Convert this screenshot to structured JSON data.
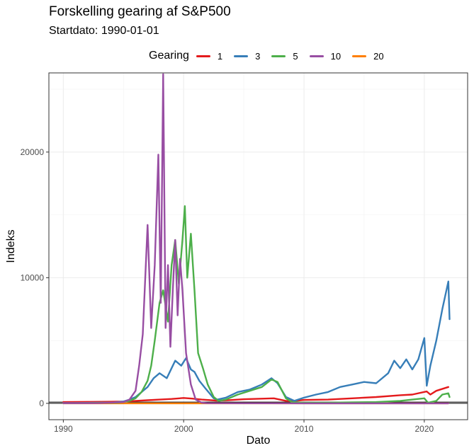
{
  "chart_data": {
    "type": "line",
    "title": "Forskelling gearing af S&P500",
    "subtitle": "Startdato: 1990-01-01",
    "xlabel": "Dato",
    "ylabel": "Indeks",
    "legend_title": "Gearing",
    "legend_position": "top",
    "grid": true,
    "xlim": [
      1988.8,
      2023.6
    ],
    "ylim": [
      -1300,
      26300
    ],
    "xticks": [
      1990,
      2000,
      2010,
      2020
    ],
    "yticks": [
      0,
      10000,
      20000
    ],
    "hlines": [
      0,
      100
    ],
    "series": [
      {
        "name": "1",
        "color": "#E41A1C",
        "x": [
          1990,
          1992,
          1994,
          1995,
          1996,
          1997,
          1998,
          1999,
          2000,
          2000.7,
          2001.5,
          2002.7,
          2003.5,
          2005,
          2007.5,
          2008.5,
          2009.2,
          2010,
          2012,
          2014,
          2016,
          2018,
          2019,
          2020.2,
          2020.5,
          2021,
          2022
        ],
        "values": [
          100,
          120,
          130,
          150,
          200,
          250,
          300,
          350,
          430,
          380,
          300,
          220,
          240,
          330,
          400,
          200,
          190,
          270,
          300,
          400,
          500,
          650,
          700,
          950,
          700,
          1000,
          1300
        ]
      },
      {
        "name": "3",
        "color": "#377EB8",
        "x": [
          1990,
          1991,
          1992,
          1993,
          1994,
          1995,
          1995.5,
          1996,
          1996.5,
          1997,
          1997.5,
          1998,
          1998.6,
          1999,
          1999.3,
          1999.8,
          2000.2,
          2000.6,
          2000.9,
          2001.3,
          2001.8,
          2002.5,
          2002.8,
          2003.5,
          2004.5,
          2005.5,
          2006.5,
          2007.3,
          2007.8,
          2008.5,
          2009.2,
          2010,
          2011,
          2012,
          2013,
          2014,
          2015,
          2016,
          2017,
          2017.5,
          2018,
          2018.5,
          2019,
          2019.5,
          2020,
          2020.2,
          2020.5,
          2021,
          2021.5,
          2022,
          2022.1
        ],
        "values": [
          30,
          30,
          40,
          60,
          60,
          150,
          300,
          500,
          900,
          1300,
          2000,
          2400,
          2000,
          2800,
          3400,
          3000,
          3600,
          2700,
          2500,
          1800,
          1200,
          400,
          300,
          450,
          900,
          1100,
          1500,
          2000,
          1600,
          500,
          200,
          450,
          700,
          900,
          1300,
          1500,
          1700,
          1600,
          2400,
          3400,
          2800,
          3500,
          2700,
          3500,
          5200,
          1400,
          3000,
          5000,
          7500,
          9700,
          6700
        ]
      },
      {
        "name": "5",
        "color": "#4DAF4A",
        "x": [
          1990,
          1992,
          1994,
          1994.5,
          1995,
          1995.5,
          1996,
          1996.5,
          1997,
          1997.3,
          1997.6,
          1998,
          1998.3,
          1998.7,
          1999,
          1999.3,
          1999.6,
          1999.9,
          2000.1,
          2000.3,
          2000.6,
          2000.9,
          2001.2,
          2001.6,
          2002,
          2002.5,
          2002.9,
          2003.5,
          2004.5,
          2005.5,
          2006.5,
          2007.3,
          2007.8,
          2008.5,
          2009,
          2010,
          2012,
          2014,
          2016,
          2018,
          2019,
          2020,
          2020.3,
          2021,
          2021.5,
          2022,
          2022.1
        ],
        "values": [
          10,
          30,
          50,
          60,
          100,
          200,
          400,
          900,
          1800,
          3000,
          5000,
          8000,
          9000,
          6500,
          11000,
          13000,
          9500,
          13000,
          15700,
          10000,
          13500,
          9000,
          4000,
          2800,
          1500,
          500,
          200,
          300,
          700,
          1000,
          1300,
          1900,
          1700,
          400,
          100,
          50,
          60,
          80,
          100,
          200,
          300,
          400,
          50,
          200,
          700,
          800,
          500
        ]
      },
      {
        "name": "10",
        "color": "#984EA3",
        "x": [
          1990,
          1993,
          1995,
          1995.5,
          1996,
          1996.3,
          1996.6,
          1997,
          1997.3,
          1997.6,
          1997.9,
          1998.1,
          1998.3,
          1998.5,
          1998.7,
          1998.9,
          1999.1,
          1999.3,
          1999.5,
          1999.7,
          1999.9,
          2000.2,
          2000.6,
          2001,
          2001.5,
          2002,
          2005,
          2010,
          2015,
          2020,
          2022
        ],
        "values": [
          10,
          20,
          100,
          300,
          1000,
          3000,
          5500,
          14200,
          6000,
          11000,
          19800,
          8000,
          26200,
          6000,
          11000,
          4500,
          9000,
          13000,
          7000,
          11500,
          9000,
          4000,
          1500,
          300,
          50,
          10,
          5,
          2,
          1,
          1,
          1
        ]
      },
      {
        "name": "20",
        "color": "#FF7F00",
        "x": [
          1990,
          1995,
          2000,
          2005,
          2010,
          2015,
          2020,
          2022
        ],
        "values": [
          1,
          1,
          1,
          1,
          1,
          1,
          1,
          1
        ]
      }
    ]
  }
}
